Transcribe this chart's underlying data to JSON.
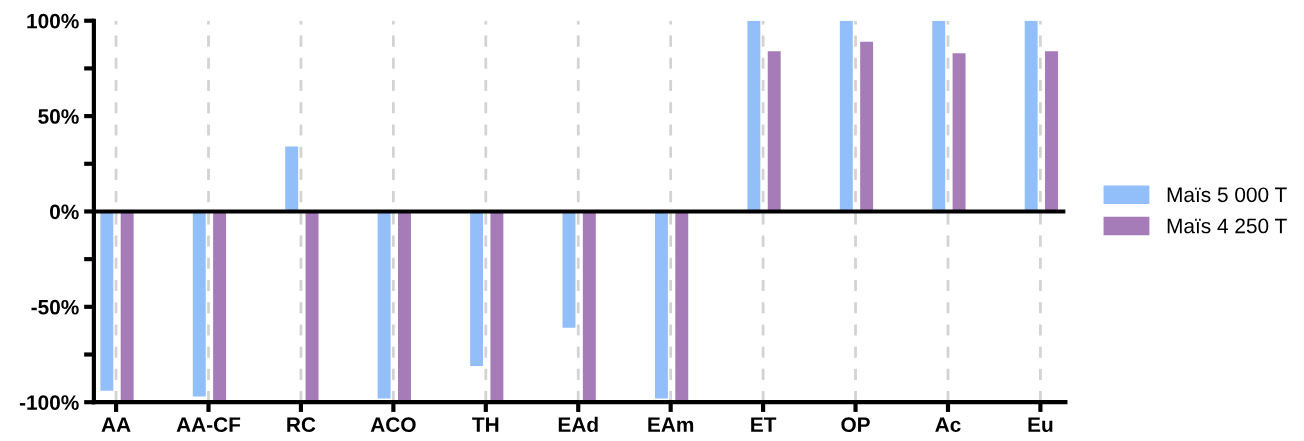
{
  "chart_data": {
    "type": "bar",
    "categories": [
      "AA",
      "AA-CF",
      "RC",
      "ACO",
      "TH",
      "EAd",
      "EAm",
      "ET",
      "OP",
      "Ac",
      "Eu"
    ],
    "series": [
      {
        "name": "Maïs 5 000 T",
        "color": "#92bff9",
        "values": [
          -94,
          -97,
          34,
          -98,
          -81,
          -61,
          -98,
          100,
          100,
          100,
          100
        ]
      },
      {
        "name": "Maïs 4 250 T",
        "color": "#a57bb8",
        "values": [
          -100,
          -100,
          -100,
          -100,
          -100,
          -100,
          -100,
          84,
          89,
          83,
          84
        ]
      }
    ],
    "ylim": [
      -100,
      100
    ],
    "yticks": [
      {
        "value": -100,
        "label": "-100%"
      },
      {
        "value": -75,
        "label": null
      },
      {
        "value": -50,
        "label": "-50%"
      },
      {
        "value": -25,
        "label": null
      },
      {
        "value": 0,
        "label": "0%"
      },
      {
        "value": 25,
        "label": null
      },
      {
        "value": 50,
        "label": "50%"
      },
      {
        "value": 75,
        "label": null
      },
      {
        "value": 100,
        "label": "100%"
      }
    ],
    "ref_lines": [
      {
        "axis": "y",
        "value": 0,
        "label": null,
        "color": "#000000"
      }
    ],
    "grid": "x",
    "legend": "right"
  }
}
